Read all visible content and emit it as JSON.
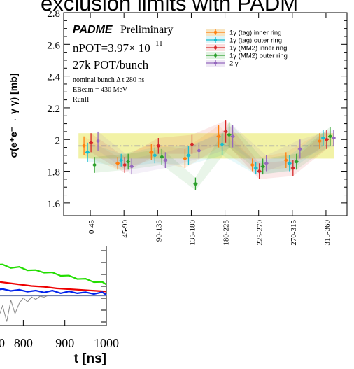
{
  "page": {
    "top_title_fragment": "exclusion limits with PADM"
  },
  "main_chart": {
    "ylabel": "σ(e⁺e⁻→ γ γ) [mb]",
    "annotations": {
      "experiment": "PADME",
      "status": "Preliminary",
      "npot": "nPOT=3.97× 10",
      "npot_exp": "11",
      "pot_per_bunch": "27k POT/bunch",
      "bunch": "nominal bunch   Δ t 280 ns",
      "ebeam": "EBeam = 430 MeV",
      "run": "RunII"
    },
    "yticks": [
      "1.6",
      "1.8",
      "2",
      "2.2",
      "2.4",
      "2.6",
      "2.8"
    ],
    "legend": [
      {
        "label": "1γ (tag) inner ring",
        "color": "#ff7f0e"
      },
      {
        "label": "1γ (tag) outer ring",
        "color": "#17becf"
      },
      {
        "label": "1γ (MM2) inner ring",
        "color": "#d62728"
      },
      {
        "label": "1γ (MM2) outer ring",
        "color": "#2ca02c"
      },
      {
        "label": "2 γ",
        "color": "#9467bd"
      }
    ],
    "band_color": "#eeee88",
    "average_color": "#8a8aa8"
  },
  "chart_data": [
    {
      "type": "scatter",
      "xlabel": "",
      "ylabel": "σ(e⁺e⁻→ γ γ) [mb]",
      "ylim": [
        1.52,
        2.8
      ],
      "categories": [
        "0-45",
        "45-90",
        "90-135",
        "135-180",
        "180-225",
        "225-270",
        "270-315",
        "315-360"
      ],
      "average": 1.96,
      "band": [
        1.88,
        2.04
      ],
      "series": [
        {
          "name": "1γ (tag) inner ring",
          "color": "#ff7f0e",
          "values": [
            1.96,
            1.85,
            1.92,
            1.88,
            2.02,
            1.84,
            1.87,
            1.99
          ],
          "errors": [
            0.06,
            0.04,
            0.05,
            0.06,
            0.07,
            0.04,
            0.05,
            0.05
          ]
        },
        {
          "name": "1γ (tag) outer ring",
          "color": "#17becf",
          "values": [
            1.92,
            1.87,
            1.9,
            1.9,
            1.97,
            1.82,
            1.85,
            2.01
          ],
          "errors": [
            0.06,
            0.04,
            0.05,
            0.06,
            0.07,
            0.04,
            0.05,
            0.05
          ]
        },
        {
          "name": "1γ (MM2) inner ring",
          "color": "#d62728",
          "values": [
            1.98,
            1.84,
            1.96,
            1.97,
            2.05,
            1.8,
            1.82,
            2.0
          ],
          "errors": [
            0.06,
            0.05,
            0.05,
            0.06,
            0.07,
            0.05,
            0.05,
            0.06
          ]
        },
        {
          "name": "1γ (MM2) outer ring",
          "color": "#2ca02c",
          "values": [
            1.84,
            1.86,
            1.89,
            1.72,
            2.03,
            1.83,
            1.86,
            2.02
          ],
          "errors": [
            0.05,
            0.05,
            0.05,
            0.04,
            0.08,
            0.05,
            0.05,
            0.06
          ]
        },
        {
          "name": "2 γ",
          "color": "#9467bd",
          "values": [
            1.99,
            1.83,
            1.87,
            1.93,
            2.02,
            1.85,
            1.94,
            2.01
          ],
          "errors": [
            0.06,
            0.05,
            0.05,
            0.05,
            0.07,
            0.05,
            0.06,
            0.05
          ]
        }
      ]
    },
    {
      "type": "line",
      "xlabel": "t [ns]",
      "ylabel": "",
      "xticks": [
        "800",
        "900",
        "1000"
      ],
      "xlim_visible": [
        730,
        1000
      ],
      "series": [
        {
          "color": "#22dd00",
          "x": [
            730,
            750,
            770,
            790,
            810,
            830,
            850,
            870,
            890,
            910,
            930,
            950,
            970,
            990,
            1000
          ],
          "y": [
            0.78,
            0.76,
            0.74,
            0.73,
            0.71,
            0.69,
            0.68,
            0.66,
            0.64,
            0.62,
            0.6,
            0.58,
            0.56,
            0.54,
            0.53
          ]
        },
        {
          "color": "#ee0000",
          "x": [
            730,
            760,
            790,
            820,
            850,
            880,
            910,
            940,
            970,
            1000
          ],
          "y": [
            0.56,
            0.54,
            0.52,
            0.5,
            0.49,
            0.47,
            0.46,
            0.45,
            0.44,
            0.43
          ]
        },
        {
          "color": "#0022ee",
          "x": [
            730,
            750,
            770,
            790,
            810,
            830,
            850,
            870,
            890,
            910,
            930,
            950,
            970,
            990,
            1000
          ],
          "y": [
            0.46,
            0.45,
            0.45,
            0.44,
            0.44,
            0.43,
            0.43,
            0.43,
            0.42,
            0.42,
            0.42,
            0.41,
            0.41,
            0.41,
            0.4
          ]
        },
        {
          "color": "#7080b0",
          "x": [
            730,
            1000
          ],
          "y": [
            0.38,
            0.38
          ]
        },
        {
          "color": "#888888",
          "x": [
            730,
            740,
            750,
            760,
            770,
            780,
            790,
            800,
            810,
            820,
            830,
            840,
            850,
            860
          ],
          "y": [
            0.3,
            0.1,
            0.25,
            0.05,
            0.32,
            0.15,
            0.28,
            0.35,
            0.3,
            0.36,
            0.33,
            0.37,
            0.36,
            0.38
          ]
        }
      ]
    }
  ]
}
